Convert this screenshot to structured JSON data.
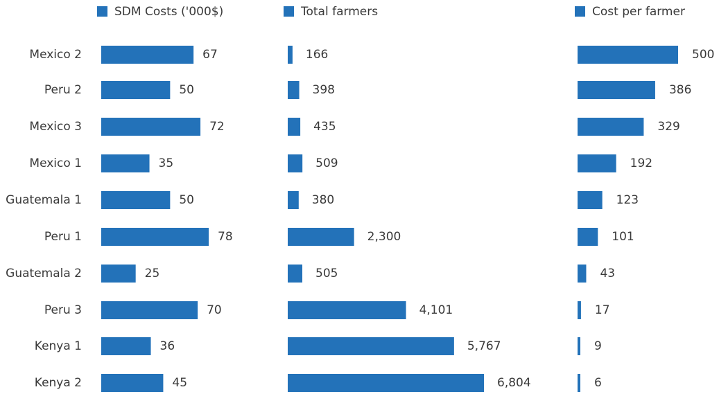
{
  "chart_data": {
    "type": "bar",
    "orientation": "horizontal",
    "layout": "three side-by-side panels sharing categories",
    "categories": [
      "Mexico 2",
      "Peru 2",
      "Mexico 3",
      "Mexico 1",
      "Guatemala 1",
      "Peru 1",
      "Guatemala 2",
      "Peru 3",
      "Kenya 1",
      "Kenya 2"
    ],
    "series": [
      {
        "name": "SDM Costs ('000$)",
        "values": [
          67,
          50,
          72,
          35,
          50,
          78,
          25,
          70,
          36,
          45
        ],
        "labels": [
          "67",
          "50",
          "72",
          "35",
          "50",
          "78",
          "25",
          "70",
          "36",
          "45"
        ]
      },
      {
        "name": "Total farmers",
        "values": [
          166,
          398,
          435,
          509,
          380,
          2300,
          505,
          4101,
          5767,
          6804
        ],
        "labels": [
          "166",
          "398",
          "435",
          "509",
          "380",
          "2,300",
          "505",
          "4,101",
          "5,767",
          "6,804"
        ]
      },
      {
        "name": "Cost per farmer",
        "values": [
          500,
          386,
          329,
          192,
          123,
          101,
          43,
          17,
          9,
          6
        ],
        "labels": [
          "500",
          "386",
          "329",
          "192",
          "123",
          "101",
          "43",
          "17",
          "9",
          "6"
        ]
      }
    ],
    "bar_color": "#2372b9",
    "text_color": "#3a3a3a",
    "legend_placement": "top",
    "grid": false,
    "axes_visible": false
  }
}
